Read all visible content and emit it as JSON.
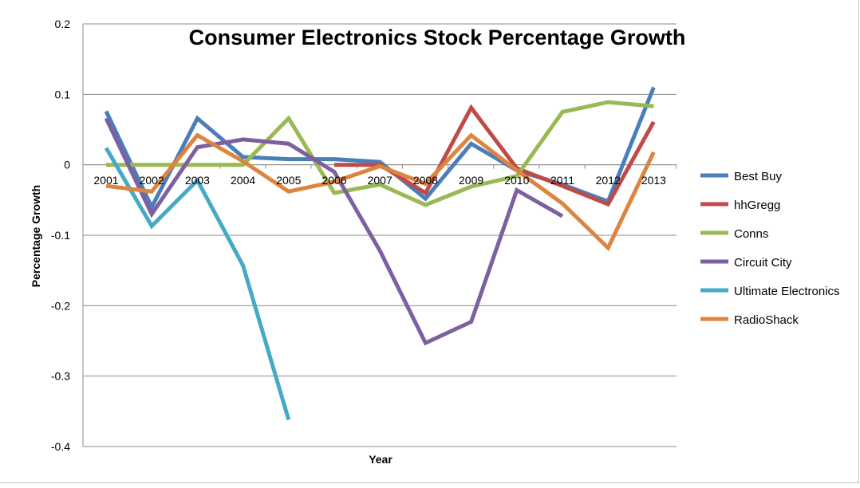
{
  "chart_data": {
    "type": "line",
    "title": "Consumer Electronics Stock Percentage Growth",
    "xlabel": "Year",
    "ylabel": "Percentage Growth",
    "ylim": [
      -0.4,
      0.2
    ],
    "yticks": [
      "0.2",
      "0.1",
      "0",
      "-0.1",
      "-0.2",
      "-0.3",
      "-0.4"
    ],
    "ytick_values": [
      0.2,
      0.1,
      0,
      -0.1,
      -0.2,
      -0.3,
      -0.4
    ],
    "grid": true,
    "legend_position": "right",
    "categories": [
      "2001",
      "2002",
      "2003",
      "2004",
      "2005",
      "2006",
      "2007",
      "2008",
      "2009",
      "2010",
      "2011",
      "2012",
      "2013"
    ],
    "series": [
      {
        "name": "Best Buy",
        "color": "#4a7ebb",
        "values": [
          0.076,
          -0.06,
          0.066,
          0.011,
          0.008,
          0.008,
          0.004,
          -0.048,
          0.03,
          -0.008,
          -0.028,
          -0.052,
          0.11
        ]
      },
      {
        "name": "hhGregg",
        "color": "#be4b48",
        "values": [
          null,
          null,
          null,
          null,
          null,
          0.0,
          0.0,
          -0.04,
          0.081,
          -0.005,
          -0.03,
          -0.056,
          0.061
        ]
      },
      {
        "name": "Conns",
        "color": "#98b954",
        "values": [
          0.0,
          0.0,
          0.0,
          0.0,
          0.066,
          -0.04,
          -0.028,
          -0.057,
          -0.031,
          -0.016,
          0.075,
          0.089,
          0.083
        ]
      },
      {
        "name": "Circuit City",
        "color": "#7d60a0",
        "values": [
          0.066,
          -0.07,
          0.025,
          0.036,
          0.03,
          -0.01,
          -0.122,
          -0.253,
          -0.223,
          -0.036,
          -0.073,
          null,
          null
        ]
      },
      {
        "name": "Ultimate Electronics",
        "color": "#46aac5",
        "values": [
          0.024,
          -0.087,
          -0.022,
          -0.143,
          -0.362,
          null,
          null,
          null,
          null,
          null,
          null,
          null,
          null
        ]
      },
      {
        "name": "RadioShack",
        "color": "#dd843f",
        "values": [
          -0.03,
          -0.038,
          0.042,
          0.005,
          -0.038,
          -0.024,
          -0.002,
          -0.027,
          0.042,
          -0.008,
          -0.055,
          -0.118,
          0.018
        ]
      }
    ]
  }
}
